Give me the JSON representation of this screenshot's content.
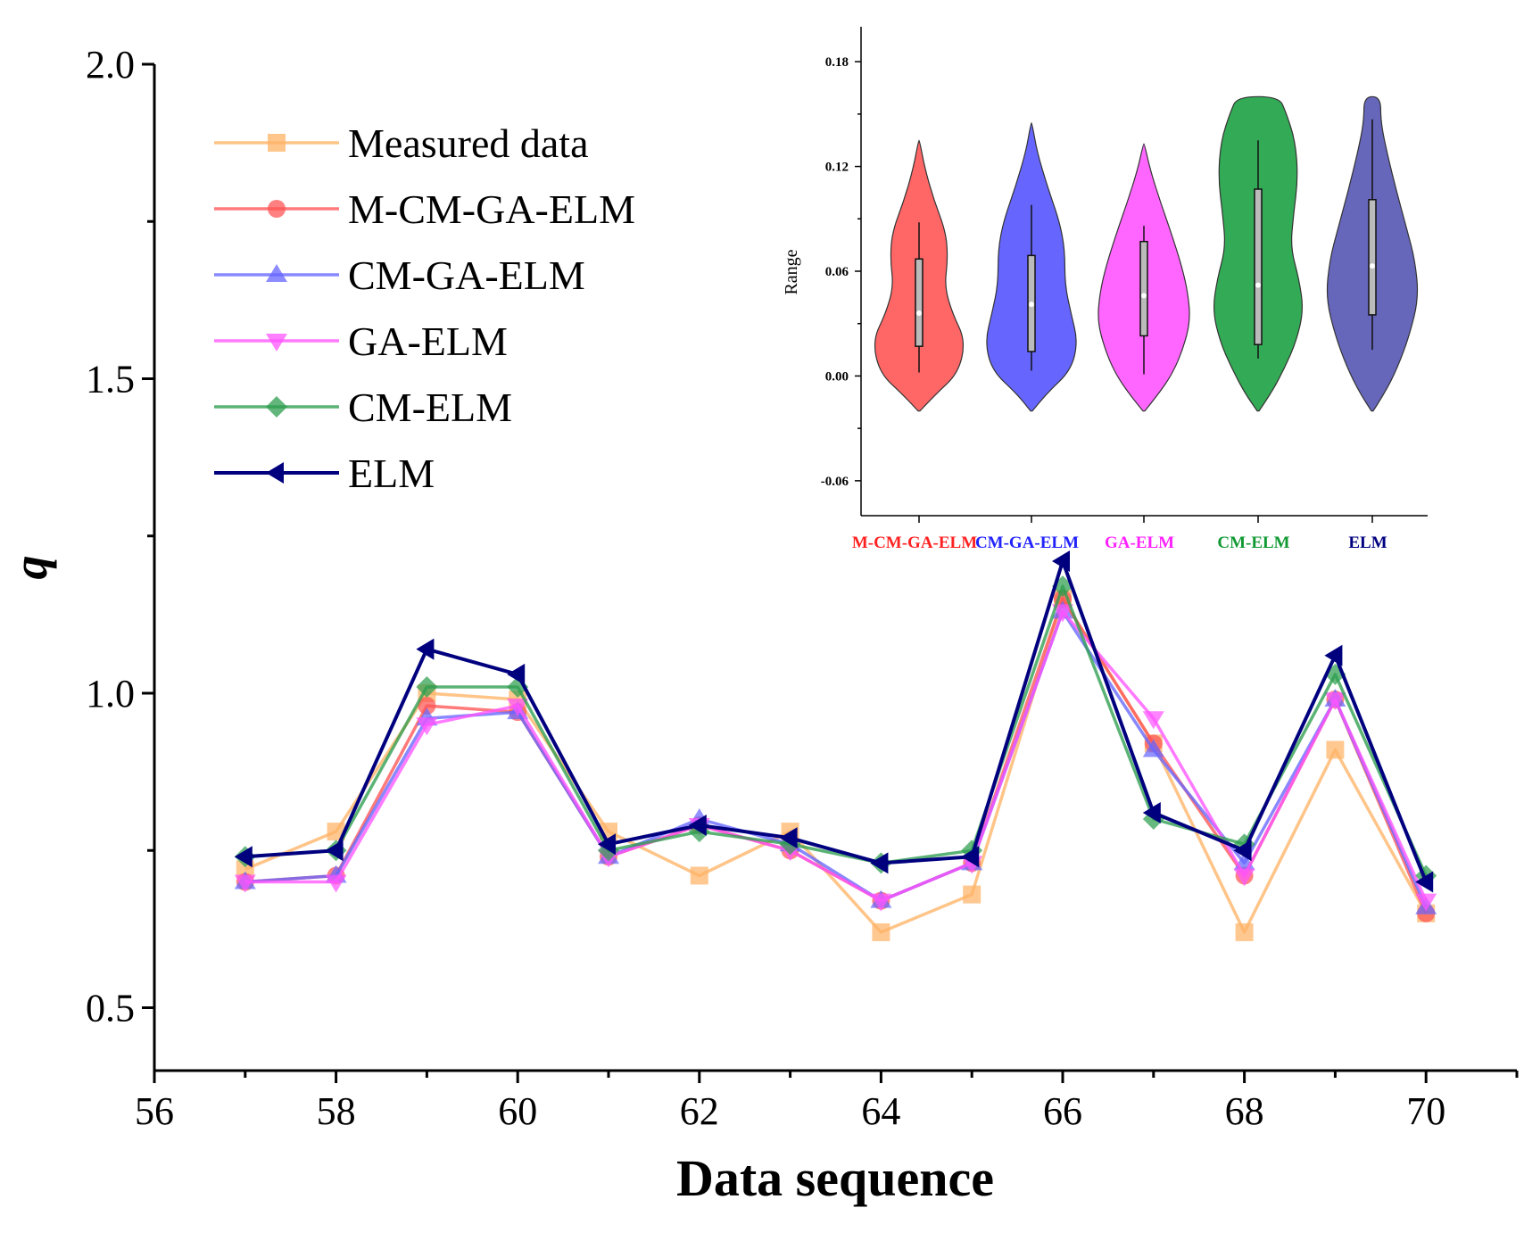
{
  "chart_data": [
    {
      "type": "line",
      "title": "",
      "xlabel": "Data sequence",
      "ylabel": "q",
      "xlim": [
        56,
        71
      ],
      "ylim": [
        0.4,
        2.0
      ],
      "xticks": [
        "56",
        "58",
        "60",
        "62",
        "64",
        "66",
        "68",
        "70"
      ],
      "yticks": [
        "0.5",
        "1.0",
        "1.5",
        "2.0"
      ],
      "x": [
        57,
        58,
        59,
        60,
        61,
        62,
        63,
        64,
        65,
        66,
        67,
        68,
        69,
        70
      ],
      "series": [
        {
          "name": "Measured data",
          "color": "#FFB366",
          "marker": "square",
          "values": [
            0.72,
            0.78,
            1.0,
            0.99,
            0.78,
            0.71,
            0.78,
            0.62,
            0.68,
            1.15,
            0.92,
            0.62,
            0.91,
            0.65
          ]
        },
        {
          "name": "M-CM-GA-ELM",
          "color": "#FF5555",
          "marker": "circle",
          "values": [
            0.7,
            0.71,
            0.98,
            0.97,
            0.74,
            0.79,
            0.75,
            0.67,
            0.73,
            1.15,
            0.92,
            0.71,
            0.99,
            0.65
          ]
        },
        {
          "name": "CM-GA-ELM",
          "color": "#6666FF",
          "marker": "triangle-up",
          "values": [
            0.7,
            0.71,
            0.96,
            0.97,
            0.74,
            0.8,
            0.76,
            0.67,
            0.73,
            1.13,
            0.91,
            0.73,
            0.99,
            0.66
          ]
        },
        {
          "name": "GA-ELM",
          "color": "#FF55FF",
          "marker": "triangle-down",
          "values": [
            0.7,
            0.7,
            0.95,
            0.98,
            0.74,
            0.79,
            0.75,
            0.67,
            0.73,
            1.13,
            0.96,
            0.71,
            0.99,
            0.67
          ]
        },
        {
          "name": "CM-ELM",
          "color": "#2E9E4F",
          "marker": "diamond",
          "values": [
            0.74,
            0.75,
            1.01,
            1.01,
            0.75,
            0.78,
            0.76,
            0.73,
            0.75,
            1.17,
            0.8,
            0.76,
            1.03,
            0.71
          ]
        },
        {
          "name": "ELM",
          "color": "#00007F",
          "marker": "triangle-left",
          "values": [
            0.74,
            0.75,
            1.07,
            1.03,
            0.76,
            0.79,
            0.77,
            0.73,
            0.74,
            1.21,
            0.81,
            0.75,
            1.06,
            0.7
          ]
        }
      ],
      "legend": "top-left"
    },
    {
      "type": "violin",
      "title": "",
      "xlabel": "",
      "ylabel": "Range",
      "ylim": [
        -0.08,
        0.2
      ],
      "yticks": [
        "-0.06",
        "0.00",
        "0.06",
        "0.12",
        "0.18"
      ],
      "categories": [
        "M-CM-GA-ELM",
        "CM-GA-ELM",
        "GA-ELM",
        "CM-ELM",
        "ELM"
      ],
      "colors": [
        "#FF6666",
        "#6666FF",
        "#FF66FF",
        "#33AA55",
        "#6666BB"
      ],
      "label_colors": [
        "#FF2222",
        "#2222FF",
        "#FF22FF",
        "#119933",
        "#000080"
      ],
      "violin_range": [
        [
          -0.02,
          0.135
        ],
        [
          -0.02,
          0.145
        ],
        [
          -0.02,
          0.133
        ],
        [
          -0.02,
          0.16
        ],
        [
          -0.02,
          0.16
        ]
      ],
      "whiskers": [
        [
          0.002,
          0.088
        ],
        [
          0.003,
          0.098
        ],
        [
          0.001,
          0.086
        ],
        [
          0.01,
          0.135
        ],
        [
          0.015,
          0.147
        ]
      ],
      "quartiles": [
        [
          0.017,
          0.067
        ],
        [
          0.014,
          0.069
        ],
        [
          0.023,
          0.077
        ],
        [
          0.018,
          0.107
        ],
        [
          0.035,
          0.101
        ]
      ],
      "medians": [
        0.036,
        0.041,
        0.046,
        0.052,
        0.063
      ]
    }
  ]
}
